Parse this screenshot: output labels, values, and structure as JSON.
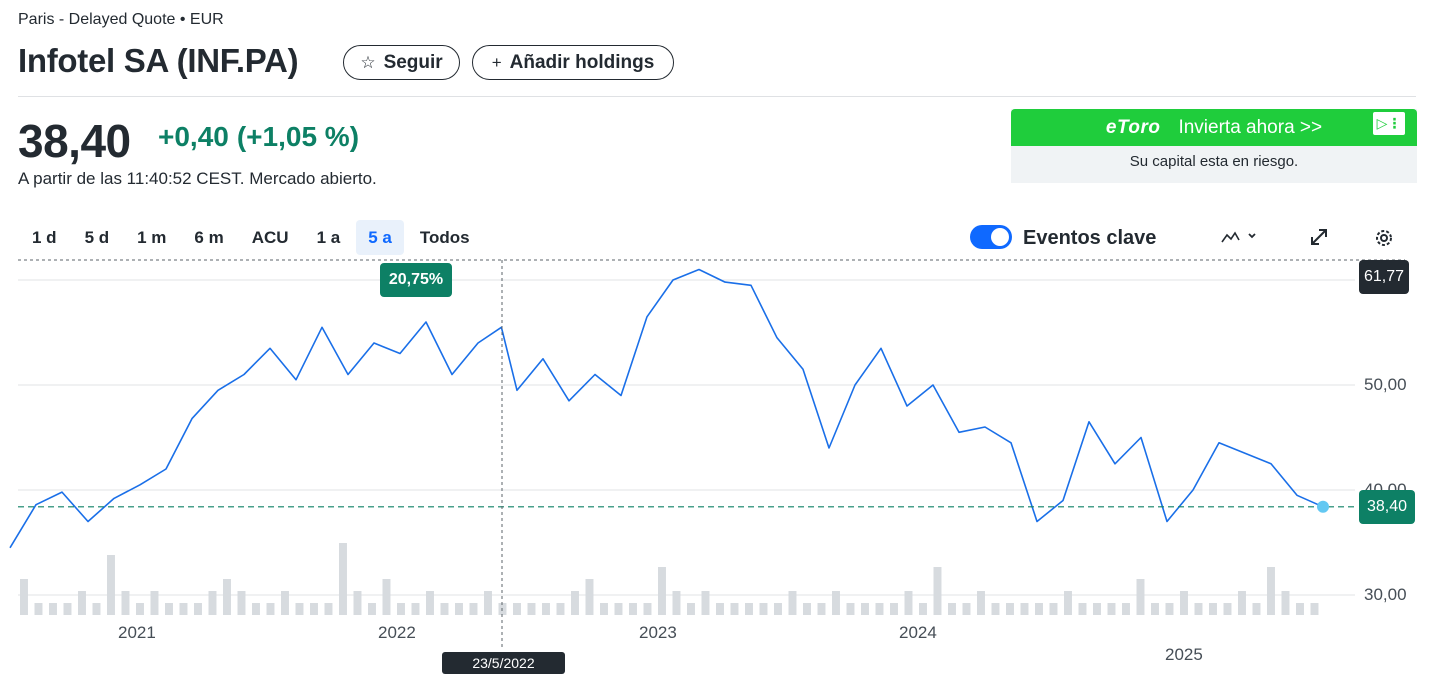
{
  "header": {
    "exchange": "Paris - Delayed Quote • EUR",
    "title": "Infotel SA (INF.PA)",
    "follow_label": "Seguir",
    "add_holdings_label": "Añadir holdings"
  },
  "quote": {
    "price": "38,40",
    "change": "+0,40",
    "change_pct": "(+1,05 %)",
    "as_of": "A partir de las 11:40:52 CEST. Mercado abierto."
  },
  "ad": {
    "brand": "eToro",
    "cta": "Invierta ahora >>",
    "risk": "Su capital esta en riesgo."
  },
  "toolbar": {
    "ranges": [
      "1 d",
      "5 d",
      "1 m",
      "6 m",
      "ACU",
      "1 a",
      "5 a",
      "Todos"
    ],
    "active_range": "5 a",
    "events_label": "Eventos clave",
    "events_enabled": true
  },
  "colors": {
    "line": "#1a6fe8",
    "positive": "#0d8065",
    "accent": "#0f69ff",
    "volume": "#d7dbdf",
    "ad_green": "#1fcd3c"
  },
  "chart_data": {
    "type": "line",
    "title": "",
    "xlabel": "",
    "ylabel": "",
    "ylim": [
      28,
      64
    ],
    "y_ticks": [
      "30,00",
      "40,00",
      "50,00"
    ],
    "x_ticks": [
      "2021",
      "2022",
      "2023",
      "2024",
      "2025"
    ],
    "max_label": "61,77",
    "current_label": "38,40",
    "current_value": 38.4,
    "range_change_label": "20,75%",
    "crosshair_date": "23/5/2022",
    "grid": true,
    "legend": "none",
    "series": [
      {
        "x": [
          2020.5,
          2020.6,
          2020.7,
          2020.8,
          2020.9,
          2021.0,
          2021.1,
          2021.2,
          2021.3,
          2021.4,
          2021.5,
          2021.6,
          2021.7,
          2021.8,
          2021.9,
          2022.0,
          2022.1,
          2022.2,
          2022.3,
          2022.39,
          2022.45,
          2022.55,
          2022.65,
          2022.75,
          2022.85,
          2022.95,
          2023.05,
          2023.15,
          2023.25,
          2023.35,
          2023.45,
          2023.55,
          2023.65,
          2023.75,
          2023.85,
          2023.95,
          2024.05,
          2024.15,
          2024.25,
          2024.35,
          2024.45,
          2024.55,
          2024.65,
          2024.75,
          2024.85,
          2024.95,
          2025.05,
          2025.15,
          2025.25,
          2025.35,
          2025.45,
          2025.55
        ],
        "y": [
          34.5,
          38.6,
          39.8,
          37.0,
          39.2,
          40.5,
          42.0,
          46.8,
          49.5,
          51.0,
          53.5,
          50.5,
          55.5,
          51.0,
          54.0,
          53.0,
          56.0,
          51.0,
          54.0,
          55.5,
          49.5,
          52.5,
          48.5,
          51.0,
          49.0,
          56.5,
          60.0,
          61.0,
          59.8,
          59.5,
          54.5,
          51.5,
          44.0,
          50.0,
          53.5,
          48.0,
          50.0,
          45.5,
          46.0,
          44.5,
          37.0,
          39.0,
          46.5,
          42.5,
          45.0,
          37.0,
          40.0,
          44.5,
          43.5,
          42.5,
          39.5,
          38.4
        ]
      }
    ],
    "volume": [
      3,
      1,
      1,
      1,
      2,
      1,
      5,
      2,
      1,
      2,
      1,
      1,
      1,
      2,
      3,
      2,
      1,
      1,
      2,
      1,
      1,
      1,
      6,
      2,
      1,
      3,
      1,
      1,
      2,
      1,
      1,
      1,
      2,
      1,
      1,
      1,
      1,
      1,
      2,
      3,
      1,
      1,
      1,
      1,
      4,
      2,
      1,
      2,
      1,
      1,
      1,
      1,
      1,
      2,
      1,
      1,
      2,
      1,
      1,
      1,
      1,
      2,
      1,
      4,
      1,
      1,
      2,
      1,
      1,
      1,
      1,
      1,
      2,
      1,
      1,
      1,
      1,
      3,
      1,
      1,
      2,
      1,
      1,
      1,
      2,
      1,
      4,
      2,
      1,
      1
    ]
  }
}
